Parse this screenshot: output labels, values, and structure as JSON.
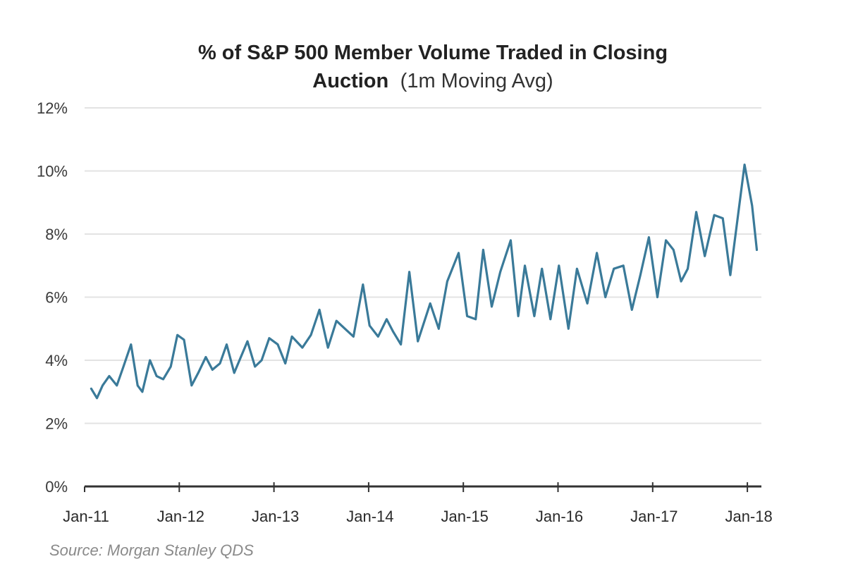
{
  "chart_data": {
    "type": "line",
    "title": "% of S&P 500 Member Volume Traded in Closing",
    "title_line2_bold": "Auction",
    "title_line2_normal": "(1m Moving Avg)",
    "xlabel": "",
    "ylabel": "",
    "ylim": [
      0,
      12
    ],
    "yticks": [
      0,
      2,
      4,
      6,
      8,
      10,
      12
    ],
    "ytick_labels": [
      "0%",
      "2%",
      "4%",
      "6%",
      "8%",
      "10%",
      "12%"
    ],
    "xlim": [
      2011.0,
      2018.2
    ],
    "xticks": [
      2011,
      2012,
      2013,
      2014,
      2015,
      2016,
      2017,
      2018
    ],
    "xtick_labels": [
      "Jan-11",
      "Jan-12",
      "Jan-13",
      "Jan-14",
      "Jan-15",
      "Jan-16",
      "Jan-17",
      "Jan-18"
    ],
    "grid": true,
    "legend": "none",
    "source": "Source: Morgan Stanley QDS",
    "series": [
      {
        "name": "% of S&P 500 volume in closing auction (1m moving avg)",
        "color": "#3a7a99",
        "x": [
          2011.07,
          2011.13,
          2011.19,
          2011.26,
          2011.34,
          2011.41,
          2011.49,
          2011.56,
          2011.61,
          2011.69,
          2011.76,
          2011.83,
          2011.91,
          2011.98,
          2012.05,
          2012.13,
          2012.2,
          2012.28,
          2012.35,
          2012.43,
          2012.5,
          2012.58,
          2012.65,
          2012.72,
          2012.8,
          2012.87,
          2012.95,
          2013.04,
          2013.12,
          2013.19,
          2013.3,
          2013.39,
          2013.48,
          2013.57,
          2013.66,
          2013.75,
          2013.84,
          2013.94,
          2014.01,
          2014.1,
          2014.19,
          2014.26,
          2014.34,
          2014.43,
          2014.52,
          2014.65,
          2014.74,
          2014.83,
          2014.95,
          2015.04,
          2015.13,
          2015.21,
          2015.3,
          2015.39,
          2015.5,
          2015.58,
          2015.65,
          2015.75,
          2015.83,
          2015.92,
          2016.01,
          2016.11,
          2016.2,
          2016.31,
          2016.41,
          2016.5,
          2016.59,
          2016.69,
          2016.78,
          2016.87,
          2016.96,
          2017.05,
          2017.14,
          2017.22,
          2017.3,
          2017.37,
          2017.46,
          2017.55,
          2017.65,
          2017.74,
          2017.82,
          2017.97,
          2018.05,
          2018.1
        ],
        "y": [
          3.1,
          2.8,
          3.2,
          3.5,
          3.2,
          3.8,
          4.5,
          3.2,
          3.0,
          4.0,
          3.5,
          3.4,
          3.8,
          4.8,
          4.65,
          3.2,
          3.6,
          4.1,
          3.7,
          3.9,
          4.5,
          3.6,
          4.1,
          4.6,
          3.8,
          4.0,
          4.7,
          4.5,
          3.9,
          4.75,
          4.4,
          4.8,
          5.6,
          4.4,
          5.25,
          5.0,
          4.75,
          6.4,
          5.1,
          4.75,
          5.3,
          4.9,
          4.5,
          6.8,
          4.6,
          5.8,
          5.0,
          6.5,
          7.4,
          5.4,
          5.3,
          7.5,
          5.7,
          6.8,
          7.8,
          5.4,
          7.0,
          5.4,
          6.9,
          5.3,
          7.0,
          5.0,
          6.9,
          5.8,
          7.4,
          6.0,
          6.9,
          7.0,
          5.6,
          6.7,
          7.9,
          6.0,
          7.8,
          7.5,
          6.5,
          6.9,
          8.7,
          7.3,
          8.6,
          8.5,
          6.7,
          10.2,
          8.9,
          7.5
        ]
      }
    ]
  }
}
